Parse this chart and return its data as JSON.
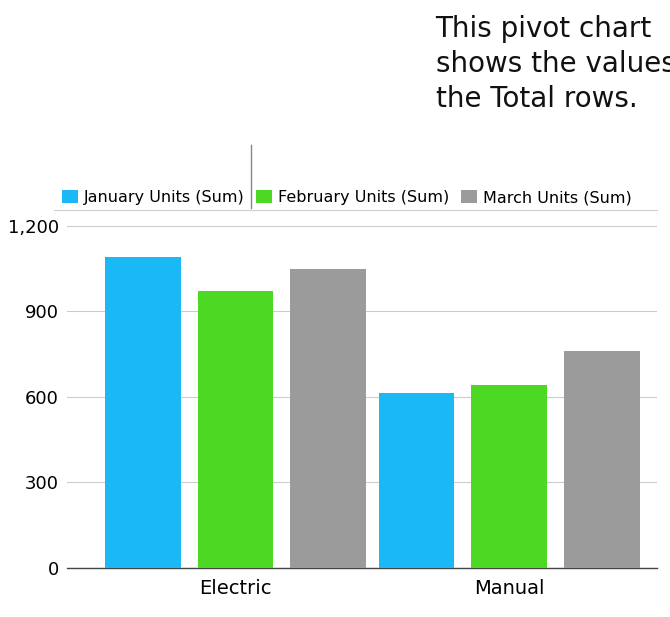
{
  "categories": [
    "Electric",
    "Manual"
  ],
  "series": [
    {
      "label": "January Units (Sum)",
      "values": [
        1090,
        615
      ],
      "color": "#1ab8f5"
    },
    {
      "label": "February Units (Sum)",
      "values": [
        970,
        640
      ],
      "color": "#4cd823"
    },
    {
      "label": "March Units (Sum)",
      "values": [
        1050,
        760
      ],
      "color": "#9b9b9b"
    }
  ],
  "ylim": [
    0,
    1300
  ],
  "yticks": [
    0,
    300,
    600,
    900,
    1200
  ],
  "background_color": "#ffffff",
  "annotation_text": "This pivot chart\nshows the values in\nthe Total rows.",
  "annotation_fontsize": 20,
  "bar_width": 0.18,
  "legend_fontsize": 11.5,
  "tick_fontsize": 13,
  "gridline_color": "#cccccc"
}
